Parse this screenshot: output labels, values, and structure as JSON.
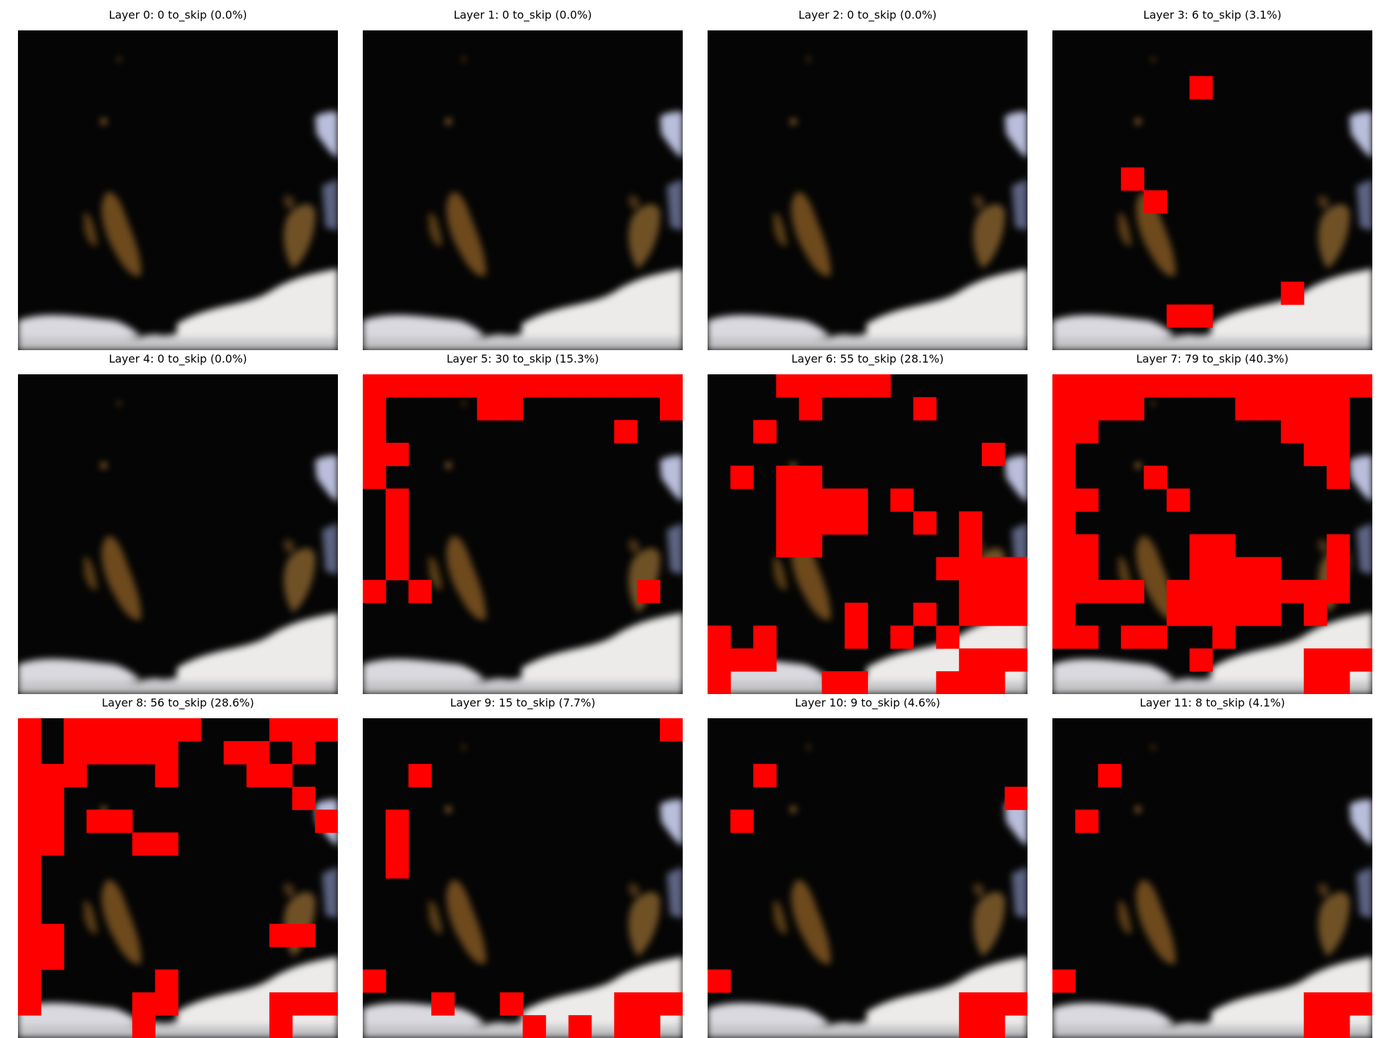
{
  "figure": {
    "grid_size": 14,
    "mask_color": "#ff0000",
    "panels": [
      {
        "title": "Layer 0: 0 to_skip (0.0%)",
        "skip_cells": []
      },
      {
        "title": "Layer 1: 0 to_skip (0.0%)",
        "skip_cells": []
      },
      {
        "title": "Layer 2: 0 to_skip (0.0%)",
        "skip_cells": []
      },
      {
        "title": "Layer 3: 6 to_skip (3.1%)",
        "skip_cells": [
          [
            2,
            6
          ],
          [
            6,
            3
          ],
          [
            7,
            4
          ],
          [
            11,
            10
          ],
          [
            12,
            5
          ],
          [
            12,
            6
          ]
        ]
      },
      {
        "title": "Layer 4: 0 to_skip (0.0%)",
        "skip_cells": []
      },
      {
        "title": "Layer 5: 30 to_skip (15.3%)",
        "skip_cells": [
          [
            0,
            0
          ],
          [
            0,
            1
          ],
          [
            0,
            2
          ],
          [
            0,
            3
          ],
          [
            0,
            4
          ],
          [
            0,
            5
          ],
          [
            0,
            6
          ],
          [
            0,
            7
          ],
          [
            0,
            8
          ],
          [
            0,
            9
          ],
          [
            0,
            10
          ],
          [
            0,
            11
          ],
          [
            0,
            12
          ],
          [
            0,
            13
          ],
          [
            1,
            0
          ],
          [
            1,
            5
          ],
          [
            1,
            6
          ],
          [
            1,
            13
          ],
          [
            2,
            0
          ],
          [
            2,
            11
          ],
          [
            3,
            0
          ],
          [
            3,
            1
          ],
          [
            4,
            0
          ],
          [
            5,
            1
          ],
          [
            6,
            1
          ],
          [
            7,
            1
          ],
          [
            8,
            1
          ],
          [
            9,
            0
          ],
          [
            9,
            2
          ],
          [
            9,
            12
          ]
        ]
      },
      {
        "title": "Layer 6: 55 to_skip (28.1%)",
        "skip_cells": [
          [
            0,
            3
          ],
          [
            0,
            4
          ],
          [
            0,
            5
          ],
          [
            0,
            6
          ],
          [
            0,
            7
          ],
          [
            1,
            4
          ],
          [
            1,
            9
          ],
          [
            2,
            2
          ],
          [
            3,
            12
          ],
          [
            4,
            1
          ],
          [
            4,
            3
          ],
          [
            4,
            4
          ],
          [
            5,
            3
          ],
          [
            5,
            4
          ],
          [
            5,
            5
          ],
          [
            5,
            6
          ],
          [
            5,
            8
          ],
          [
            6,
            3
          ],
          [
            6,
            4
          ],
          [
            6,
            5
          ],
          [
            6,
            6
          ],
          [
            6,
            9
          ],
          [
            6,
            11
          ],
          [
            7,
            3
          ],
          [
            7,
            4
          ],
          [
            7,
            11
          ],
          [
            8,
            10
          ],
          [
            8,
            11
          ],
          [
            8,
            12
          ],
          [
            8,
            13
          ],
          [
            9,
            11
          ],
          [
            9,
            12
          ],
          [
            9,
            13
          ],
          [
            10,
            6
          ],
          [
            10,
            9
          ],
          [
            10,
            11
          ],
          [
            10,
            12
          ],
          [
            10,
            13
          ],
          [
            11,
            0
          ],
          [
            11,
            2
          ],
          [
            11,
            6
          ],
          [
            11,
            8
          ],
          [
            11,
            10
          ],
          [
            12,
            0
          ],
          [
            12,
            1
          ],
          [
            12,
            2
          ],
          [
            12,
            11
          ],
          [
            12,
            12
          ],
          [
            12,
            13
          ],
          [
            13,
            5
          ],
          [
            13,
            6
          ],
          [
            13,
            10
          ],
          [
            13,
            11
          ],
          [
            13,
            12
          ],
          [
            13,
            0
          ]
        ]
      },
      {
        "title": "Layer 7: 79 to_skip (40.3%)",
        "skip_cells": [
          [
            0,
            0
          ],
          [
            0,
            1
          ],
          [
            0,
            2
          ],
          [
            0,
            3
          ],
          [
            0,
            4
          ],
          [
            0,
            5
          ],
          [
            0,
            6
          ],
          [
            0,
            7
          ],
          [
            0,
            8
          ],
          [
            0,
            9
          ],
          [
            0,
            10
          ],
          [
            0,
            11
          ],
          [
            0,
            12
          ],
          [
            0,
            13
          ],
          [
            1,
            0
          ],
          [
            1,
            2
          ],
          [
            1,
            8
          ],
          [
            1,
            9
          ],
          [
            1,
            10
          ],
          [
            1,
            12
          ],
          [
            2,
            0
          ],
          [
            2,
            1
          ],
          [
            2,
            10
          ],
          [
            2,
            11
          ],
          [
            2,
            12
          ],
          [
            3,
            0
          ],
          [
            3,
            11
          ],
          [
            3,
            12
          ],
          [
            4,
            0
          ],
          [
            4,
            4
          ],
          [
            4,
            12
          ],
          [
            5,
            0
          ],
          [
            5,
            1
          ],
          [
            5,
            5
          ],
          [
            6,
            0
          ],
          [
            7,
            0
          ],
          [
            7,
            1
          ],
          [
            7,
            7
          ],
          [
            7,
            12
          ],
          [
            8,
            0
          ],
          [
            8,
            1
          ],
          [
            8,
            6
          ],
          [
            8,
            7
          ],
          [
            8,
            8
          ],
          [
            8,
            9
          ],
          [
            8,
            12
          ],
          [
            9,
            0
          ],
          [
            9,
            1
          ],
          [
            9,
            2
          ],
          [
            9,
            3
          ],
          [
            9,
            5
          ],
          [
            9,
            6
          ],
          [
            9,
            7
          ],
          [
            9,
            8
          ],
          [
            9,
            9
          ],
          [
            9,
            10
          ],
          [
            9,
            11
          ],
          [
            9,
            12
          ],
          [
            10,
            0
          ],
          [
            10,
            5
          ],
          [
            10,
            6
          ],
          [
            10,
            7
          ],
          [
            10,
            8
          ],
          [
            10,
            9
          ],
          [
            10,
            11
          ],
          [
            11,
            3
          ],
          [
            11,
            4
          ],
          [
            11,
            7
          ],
          [
            12,
            6
          ],
          [
            12,
            11
          ],
          [
            12,
            12
          ],
          [
            12,
            13
          ],
          [
            13,
            11
          ],
          [
            13,
            12
          ],
          [
            11,
            0
          ],
          [
            11,
            1
          ],
          [
            1,
            1
          ],
          [
            1,
            3
          ],
          [
            1,
            11
          ],
          [
            7,
            6
          ]
        ]
      },
      {
        "title": "Layer 8: 56 to_skip (28.6%)",
        "skip_cells": [
          [
            0,
            0
          ],
          [
            0,
            2
          ],
          [
            0,
            3
          ],
          [
            0,
            4
          ],
          [
            0,
            5
          ],
          [
            0,
            6
          ],
          [
            0,
            7
          ],
          [
            0,
            11
          ],
          [
            0,
            12
          ],
          [
            0,
            13
          ],
          [
            1,
            0
          ],
          [
            1,
            2
          ],
          [
            1,
            3
          ],
          [
            1,
            4
          ],
          [
            1,
            5
          ],
          [
            1,
            6
          ],
          [
            1,
            9
          ],
          [
            1,
            10
          ],
          [
            1,
            12
          ],
          [
            2,
            0
          ],
          [
            2,
            1
          ],
          [
            2,
            2
          ],
          [
            2,
            6
          ],
          [
            2,
            10
          ],
          [
            2,
            11
          ],
          [
            3,
            0
          ],
          [
            3,
            1
          ],
          [
            3,
            12
          ],
          [
            4,
            0
          ],
          [
            4,
            1
          ],
          [
            4,
            3
          ],
          [
            4,
            4
          ],
          [
            4,
            13
          ],
          [
            5,
            0
          ],
          [
            5,
            1
          ],
          [
            5,
            5
          ],
          [
            5,
            6
          ],
          [
            6,
            0
          ],
          [
            7,
            0
          ],
          [
            8,
            0
          ],
          [
            9,
            0
          ],
          [
            9,
            1
          ],
          [
            9,
            11
          ],
          [
            9,
            12
          ],
          [
            10,
            0
          ],
          [
            10,
            1
          ],
          [
            11,
            0
          ],
          [
            11,
            6
          ],
          [
            12,
            0
          ],
          [
            12,
            5
          ],
          [
            12,
            6
          ],
          [
            12,
            11
          ],
          [
            12,
            12
          ],
          [
            12,
            13
          ],
          [
            13,
            5
          ],
          [
            13,
            11
          ]
        ]
      },
      {
        "title": "Layer 9: 15 to_skip (7.7%)",
        "skip_cells": [
          [
            0,
            13
          ],
          [
            2,
            2
          ],
          [
            4,
            1
          ],
          [
            5,
            1
          ],
          [
            6,
            1
          ],
          [
            11,
            0
          ],
          [
            12,
            3
          ],
          [
            12,
            6
          ],
          [
            12,
            11
          ],
          [
            12,
            12
          ],
          [
            12,
            13
          ],
          [
            13,
            7
          ],
          [
            13,
            9
          ],
          [
            13,
            11
          ],
          [
            13,
            12
          ]
        ]
      },
      {
        "title": "Layer 10: 9 to_skip (4.6%)",
        "skip_cells": [
          [
            2,
            2
          ],
          [
            3,
            13
          ],
          [
            4,
            1
          ],
          [
            11,
            0
          ],
          [
            12,
            11
          ],
          [
            12,
            12
          ],
          [
            12,
            13
          ],
          [
            13,
            11
          ],
          [
            13,
            12
          ]
        ]
      },
      {
        "title": "Layer 11: 8 to_skip (4.1%)",
        "skip_cells": [
          [
            2,
            2
          ],
          [
            4,
            1
          ],
          [
            11,
            0
          ],
          [
            12,
            11
          ],
          [
            12,
            12
          ],
          [
            12,
            13
          ],
          [
            13,
            11
          ],
          [
            13,
            12
          ]
        ]
      }
    ]
  }
}
